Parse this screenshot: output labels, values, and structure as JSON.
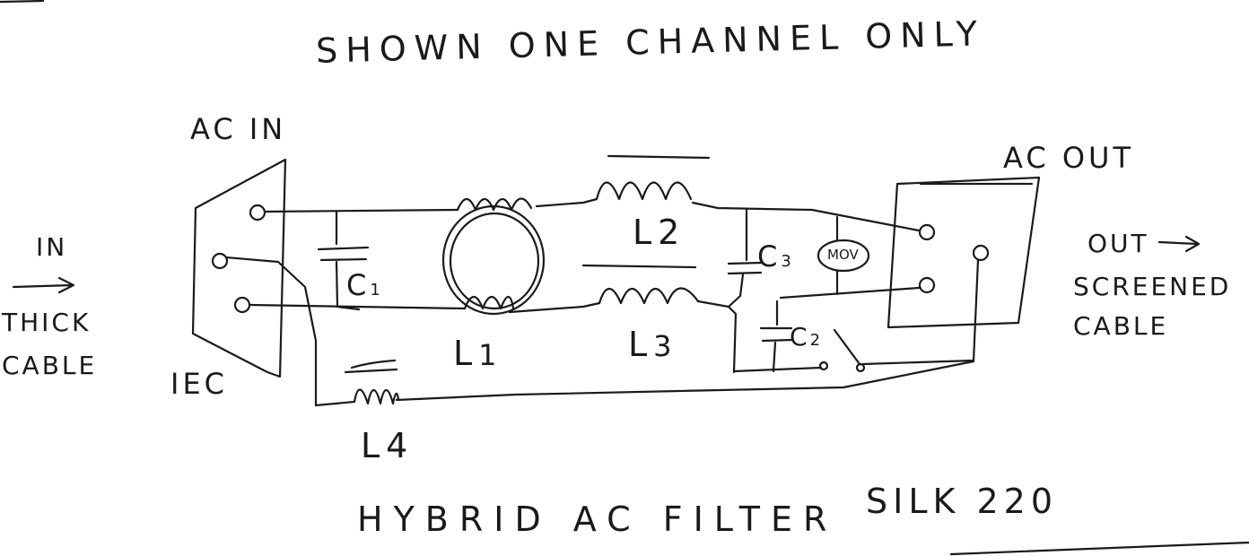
{
  "title": "SHOWN ONE CHANNEL ONLY",
  "footer": "HYBRID AC FILTER",
  "model": "SILK 220",
  "labels": {
    "ac_in": "AC IN",
    "ac_out": "AC OUT",
    "in": "IN",
    "thick_cable_1": "THICK",
    "thick_cable_2": "CABLE",
    "iec": "IEC",
    "out": "OUT",
    "screened_1": "SCREENED",
    "screened_2": "CABLE",
    "mov": "MOV"
  },
  "components": {
    "c1": {
      "letter": "C",
      "index": "1"
    },
    "c2": {
      "letter": "C",
      "index": "2"
    },
    "c3": {
      "letter": "C",
      "index": "3"
    },
    "l1": {
      "letter": "L",
      "index": "1"
    },
    "l2": {
      "letter": "L",
      "index": "2"
    },
    "l3": {
      "letter": "L",
      "index": "3"
    },
    "l4": {
      "letter": "L",
      "index": "4"
    }
  }
}
